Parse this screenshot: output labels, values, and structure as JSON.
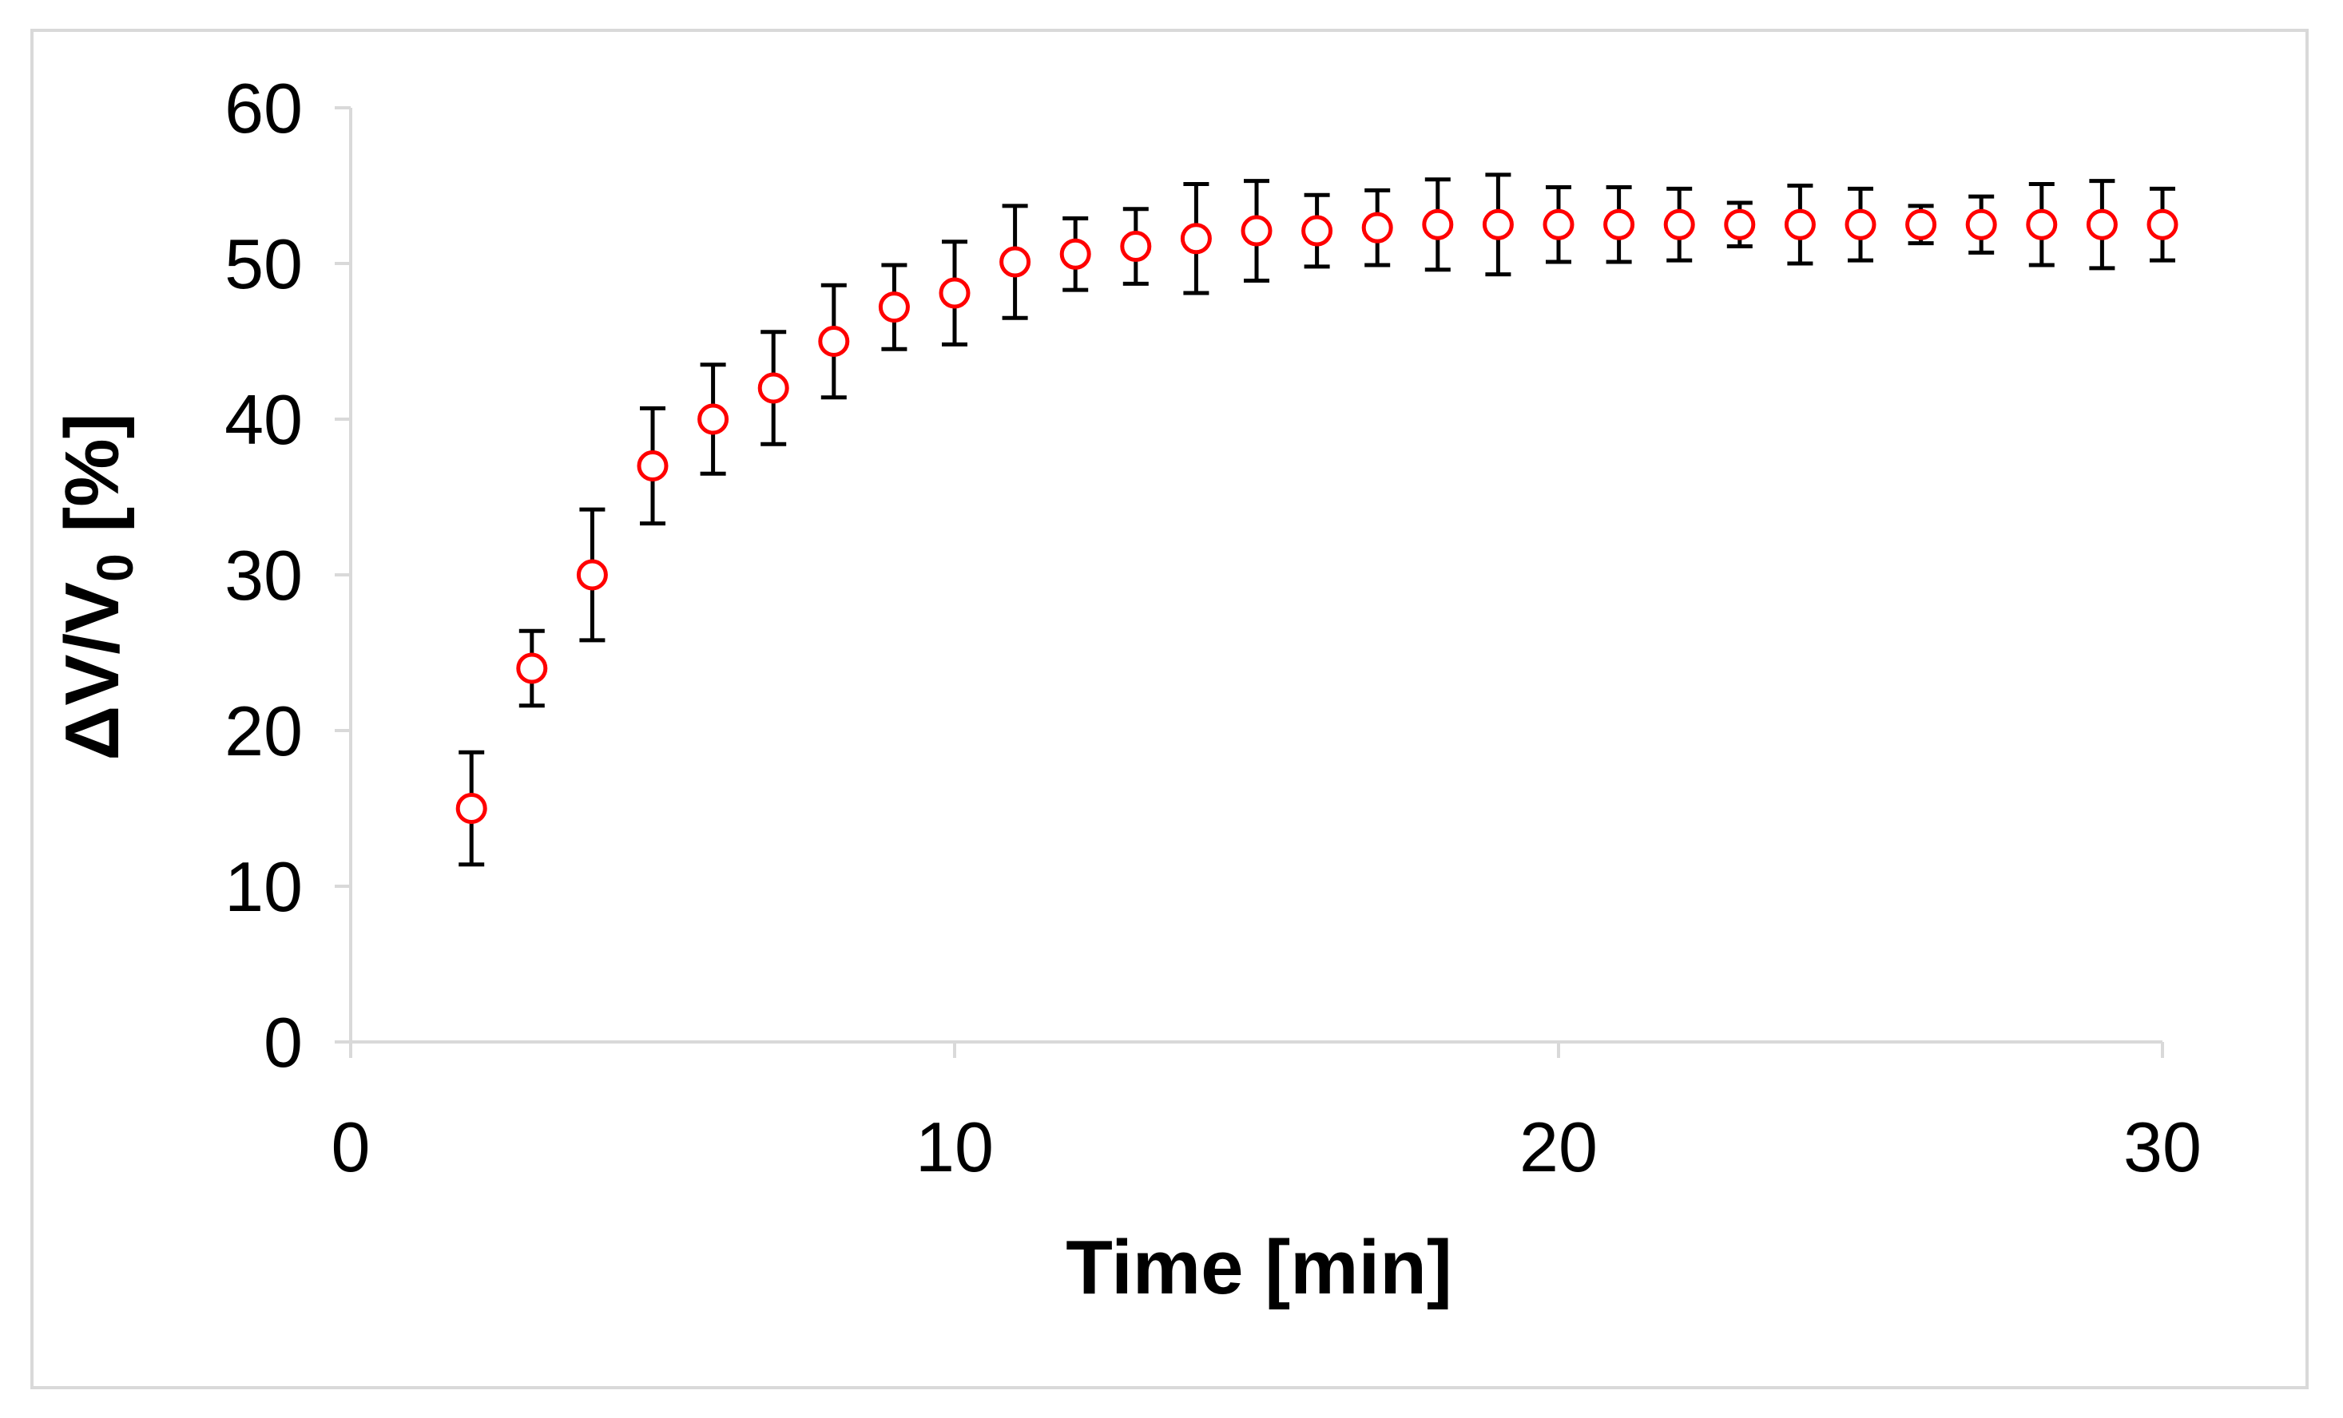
{
  "chart_data": {
    "type": "scatter",
    "title": "",
    "xlabel": "Time [min]",
    "ylabel": {
      "main": "ΔV/V",
      "subscript": "0",
      "suffix": " [%]"
    },
    "xlim": [
      0,
      30
    ],
    "ylim": [
      0,
      60
    ],
    "x_ticks": [
      "0",
      "10",
      "20",
      "30"
    ],
    "y_ticks": [
      "0",
      "10",
      "20",
      "30",
      "40",
      "50",
      "60"
    ],
    "grid": false,
    "legend": "none",
    "marker": "open-circle",
    "colors": {
      "marker": "#ff0000",
      "error_bar": "#000000",
      "axis": "#d9d9d9"
    },
    "series": [
      {
        "x": [
          2,
          3,
          4,
          5,
          6,
          7,
          8,
          9,
          10,
          11,
          12,
          13,
          14,
          15,
          16,
          17,
          18,
          19,
          20,
          21,
          22,
          23,
          24,
          25,
          26,
          27,
          28,
          29,
          30
        ],
        "y": [
          15,
          24,
          30,
          37,
          40,
          42,
          45,
          47.2,
          48.1,
          50.1,
          50.6,
          51.1,
          51.6,
          52.1,
          52.1,
          52.3,
          52.5,
          52.5,
          52.5,
          52.5,
          52.5,
          52.5,
          52.5,
          52.5,
          52.5,
          52.5,
          52.5,
          52.5,
          52.5
        ],
        "error": [
          3.6,
          2.4,
          4.2,
          3.7,
          3.5,
          3.6,
          3.6,
          2.7,
          3.3,
          3.6,
          2.3,
          2.4,
          3.5,
          3.2,
          2.3,
          2.4,
          2.9,
          3.2,
          2.4,
          2.4,
          2.3,
          1.4,
          2.5,
          2.3,
          1.2,
          1.8,
          2.6,
          2.8,
          2.3
        ]
      }
    ]
  }
}
